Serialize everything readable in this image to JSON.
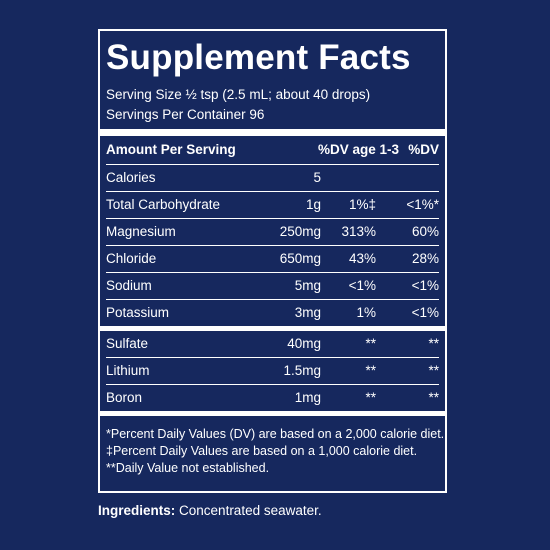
{
  "title": "Supplement Facts",
  "serving_size": "Serving Size ½ tsp (2.5 mL; about 40 drops)",
  "servings_per_container": "Servings Per Container 96",
  "header": {
    "amount": "Amount Per Serving",
    "dv_age": "%DV age 1-3",
    "dv": "%DV"
  },
  "rows": [
    {
      "name": "Calories",
      "amount": "5",
      "dv_age": "",
      "dv": ""
    },
    {
      "name": "Total Carbohydrate",
      "amount": "1g",
      "dv_age": "1%‡",
      "dv": "<1%*"
    },
    {
      "name": "Magnesium",
      "amount": "250mg",
      "dv_age": "313%",
      "dv": "60%"
    },
    {
      "name": "Chloride",
      "amount": "650mg",
      "dv_age": "43%",
      "dv": "28%"
    },
    {
      "name": "Sodium",
      "amount": "5mg",
      "dv_age": "<1%",
      "dv": "<1%"
    },
    {
      "name": "Potassium",
      "amount": "3mg",
      "dv_age": "1%",
      "dv": "<1%"
    }
  ],
  "rows2": [
    {
      "name": "Sulfate",
      "amount": "40mg",
      "dv_age": "**",
      "dv": "**"
    },
    {
      "name": "Lithium",
      "amount": "1.5mg",
      "dv_age": "**",
      "dv": "**"
    },
    {
      "name": "Boron",
      "amount": "1mg",
      "dv_age": "**",
      "dv": "**"
    }
  ],
  "footnotes": [
    "*Percent Daily Values (DV) are based on a 2,000 calorie diet.",
    "‡Percent Daily Values are based on a 1,000 calorie diet.",
    "**Daily Value not established."
  ],
  "ingredients": {
    "label": "Ingredients:",
    "text": "Concentrated seawater."
  },
  "colors": {
    "background": "#16285e",
    "text": "#ffffff"
  }
}
